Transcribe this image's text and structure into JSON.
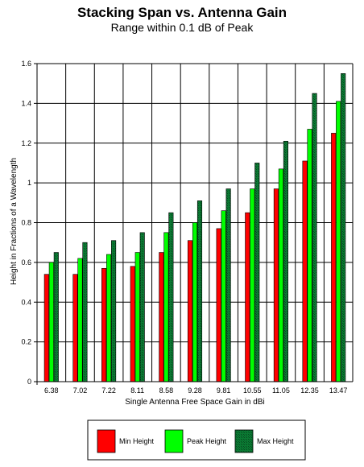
{
  "chart_data": {
    "type": "bar",
    "title": "Stacking Span vs. Antenna Gain",
    "subtitle": "Range within 0.1 dB of Peak",
    "xlabel": "Single Antenna Free Space Gain in dBi",
    "ylabel": "Height in Fractions of a Wavelength",
    "ylim": [
      0,
      1.6
    ],
    "yticks": [
      "0",
      "0.2",
      "0.4",
      "0.6",
      "0.8",
      "1",
      "1.2",
      "1.4",
      "1.6"
    ],
    "ytick_values": [
      0,
      0.2,
      0.4,
      0.6,
      0.8,
      1.0,
      1.2,
      1.4,
      1.6
    ],
    "grid": true,
    "legend_position": "bottom",
    "categories": [
      "6.38",
      "7.02",
      "7.22",
      "8.11",
      "8.58",
      "9.28",
      "9.81",
      "10.55",
      "11.05",
      "12.35",
      "13.47"
    ],
    "series": [
      {
        "name": "Min Height",
        "color": "#ff0000",
        "values": [
          0.54,
          0.54,
          0.57,
          0.58,
          0.65,
          0.71,
          0.77,
          0.85,
          0.97,
          1.11,
          1.25
        ]
      },
      {
        "name": "Peak Height",
        "color": "#00ff00",
        "values": [
          0.6,
          0.62,
          0.64,
          0.65,
          0.75,
          0.8,
          0.86,
          0.97,
          1.07,
          1.27,
          1.41
        ]
      },
      {
        "name": "Max Height",
        "color": "#0b7a33",
        "values": [
          0.65,
          0.7,
          0.71,
          0.75,
          0.85,
          0.91,
          0.97,
          1.1,
          1.21,
          1.45,
          1.55
        ]
      }
    ]
  }
}
